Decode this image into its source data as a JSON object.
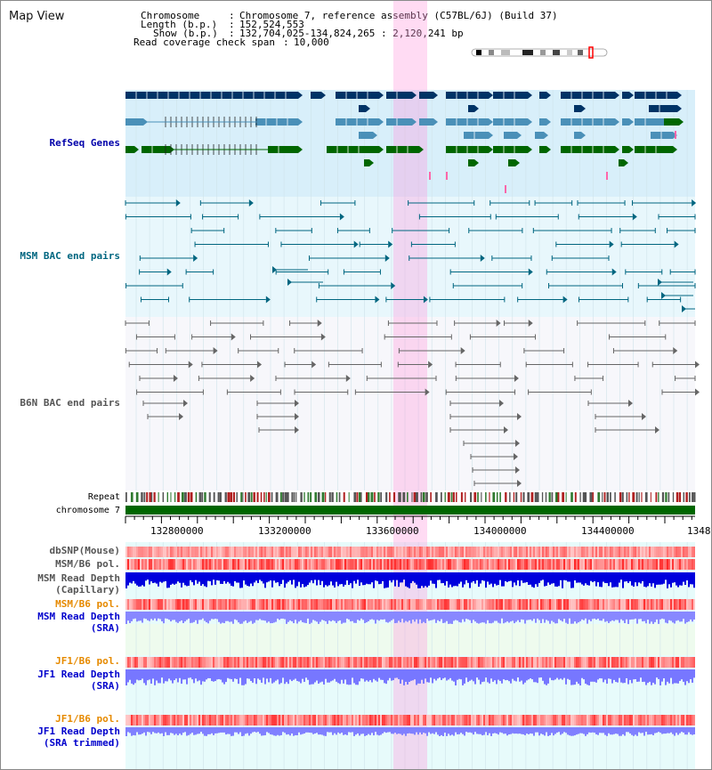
{
  "title": "Map View",
  "info": {
    "chromosome_key": "Chromosome",
    "chromosome_val": "Chromosome 7, reference assembly (C57BL/6J) (Build 37)",
    "length_key": "Length (b.p.)",
    "length_val": "152,524,553",
    "show_key": "Show (b.p.)",
    "show_val": "132,704,025-134,824,265 : 2,120,241 bp",
    "span_key": "Read coverage check span",
    "span_val": "10,000"
  },
  "tracks": {
    "refseq": "RefSeq Genes",
    "msm_bac": "MSM BAC end pairs",
    "b6n_bac": "B6N BAC end pairs",
    "repeat": "Repeat",
    "chromosome": "chromosome 7",
    "dbsnp": "dbSNP(Mouse)",
    "msm_b6_pol_1": "MSM/B6 pol.",
    "msm_read_depth_cap_1": "MSM Read Depth",
    "msm_read_depth_cap_2": "(Capillary)",
    "msm_b6_pol_2": "MSM/B6 pol.",
    "msm_read_depth_sra_1": "MSM Read Depth",
    "msm_read_depth_sra_2": "(SRA)",
    "jf1_b6_pol_1": "JF1/B6 pol.",
    "jf1_read_depth_sra_1": "JF1 Read Depth",
    "jf1_read_depth_sra_2": "(SRA)",
    "jf1_b6_pol_2": "JF1/B6 pol.",
    "jf1_read_depth_trim_1": "JF1 Read Depth",
    "jf1_read_depth_trim_2": "(SRA trimmed)"
  },
  "axis": {
    "ticks": [
      "132800000",
      "133200000",
      "133600000",
      "134000000",
      "134400000",
      "1348"
    ]
  },
  "colors": {
    "refseq_label": "#0000aa",
    "msm_label": "#006680",
    "b6n_label": "#555555",
    "pol_orange": "#e68a00",
    "depth_blue": "#0000cc",
    "highlight": "#ff99dd",
    "gene_dark": "#003366",
    "gene_mid": "#4a90b8",
    "gene_green": "#006600"
  }
}
